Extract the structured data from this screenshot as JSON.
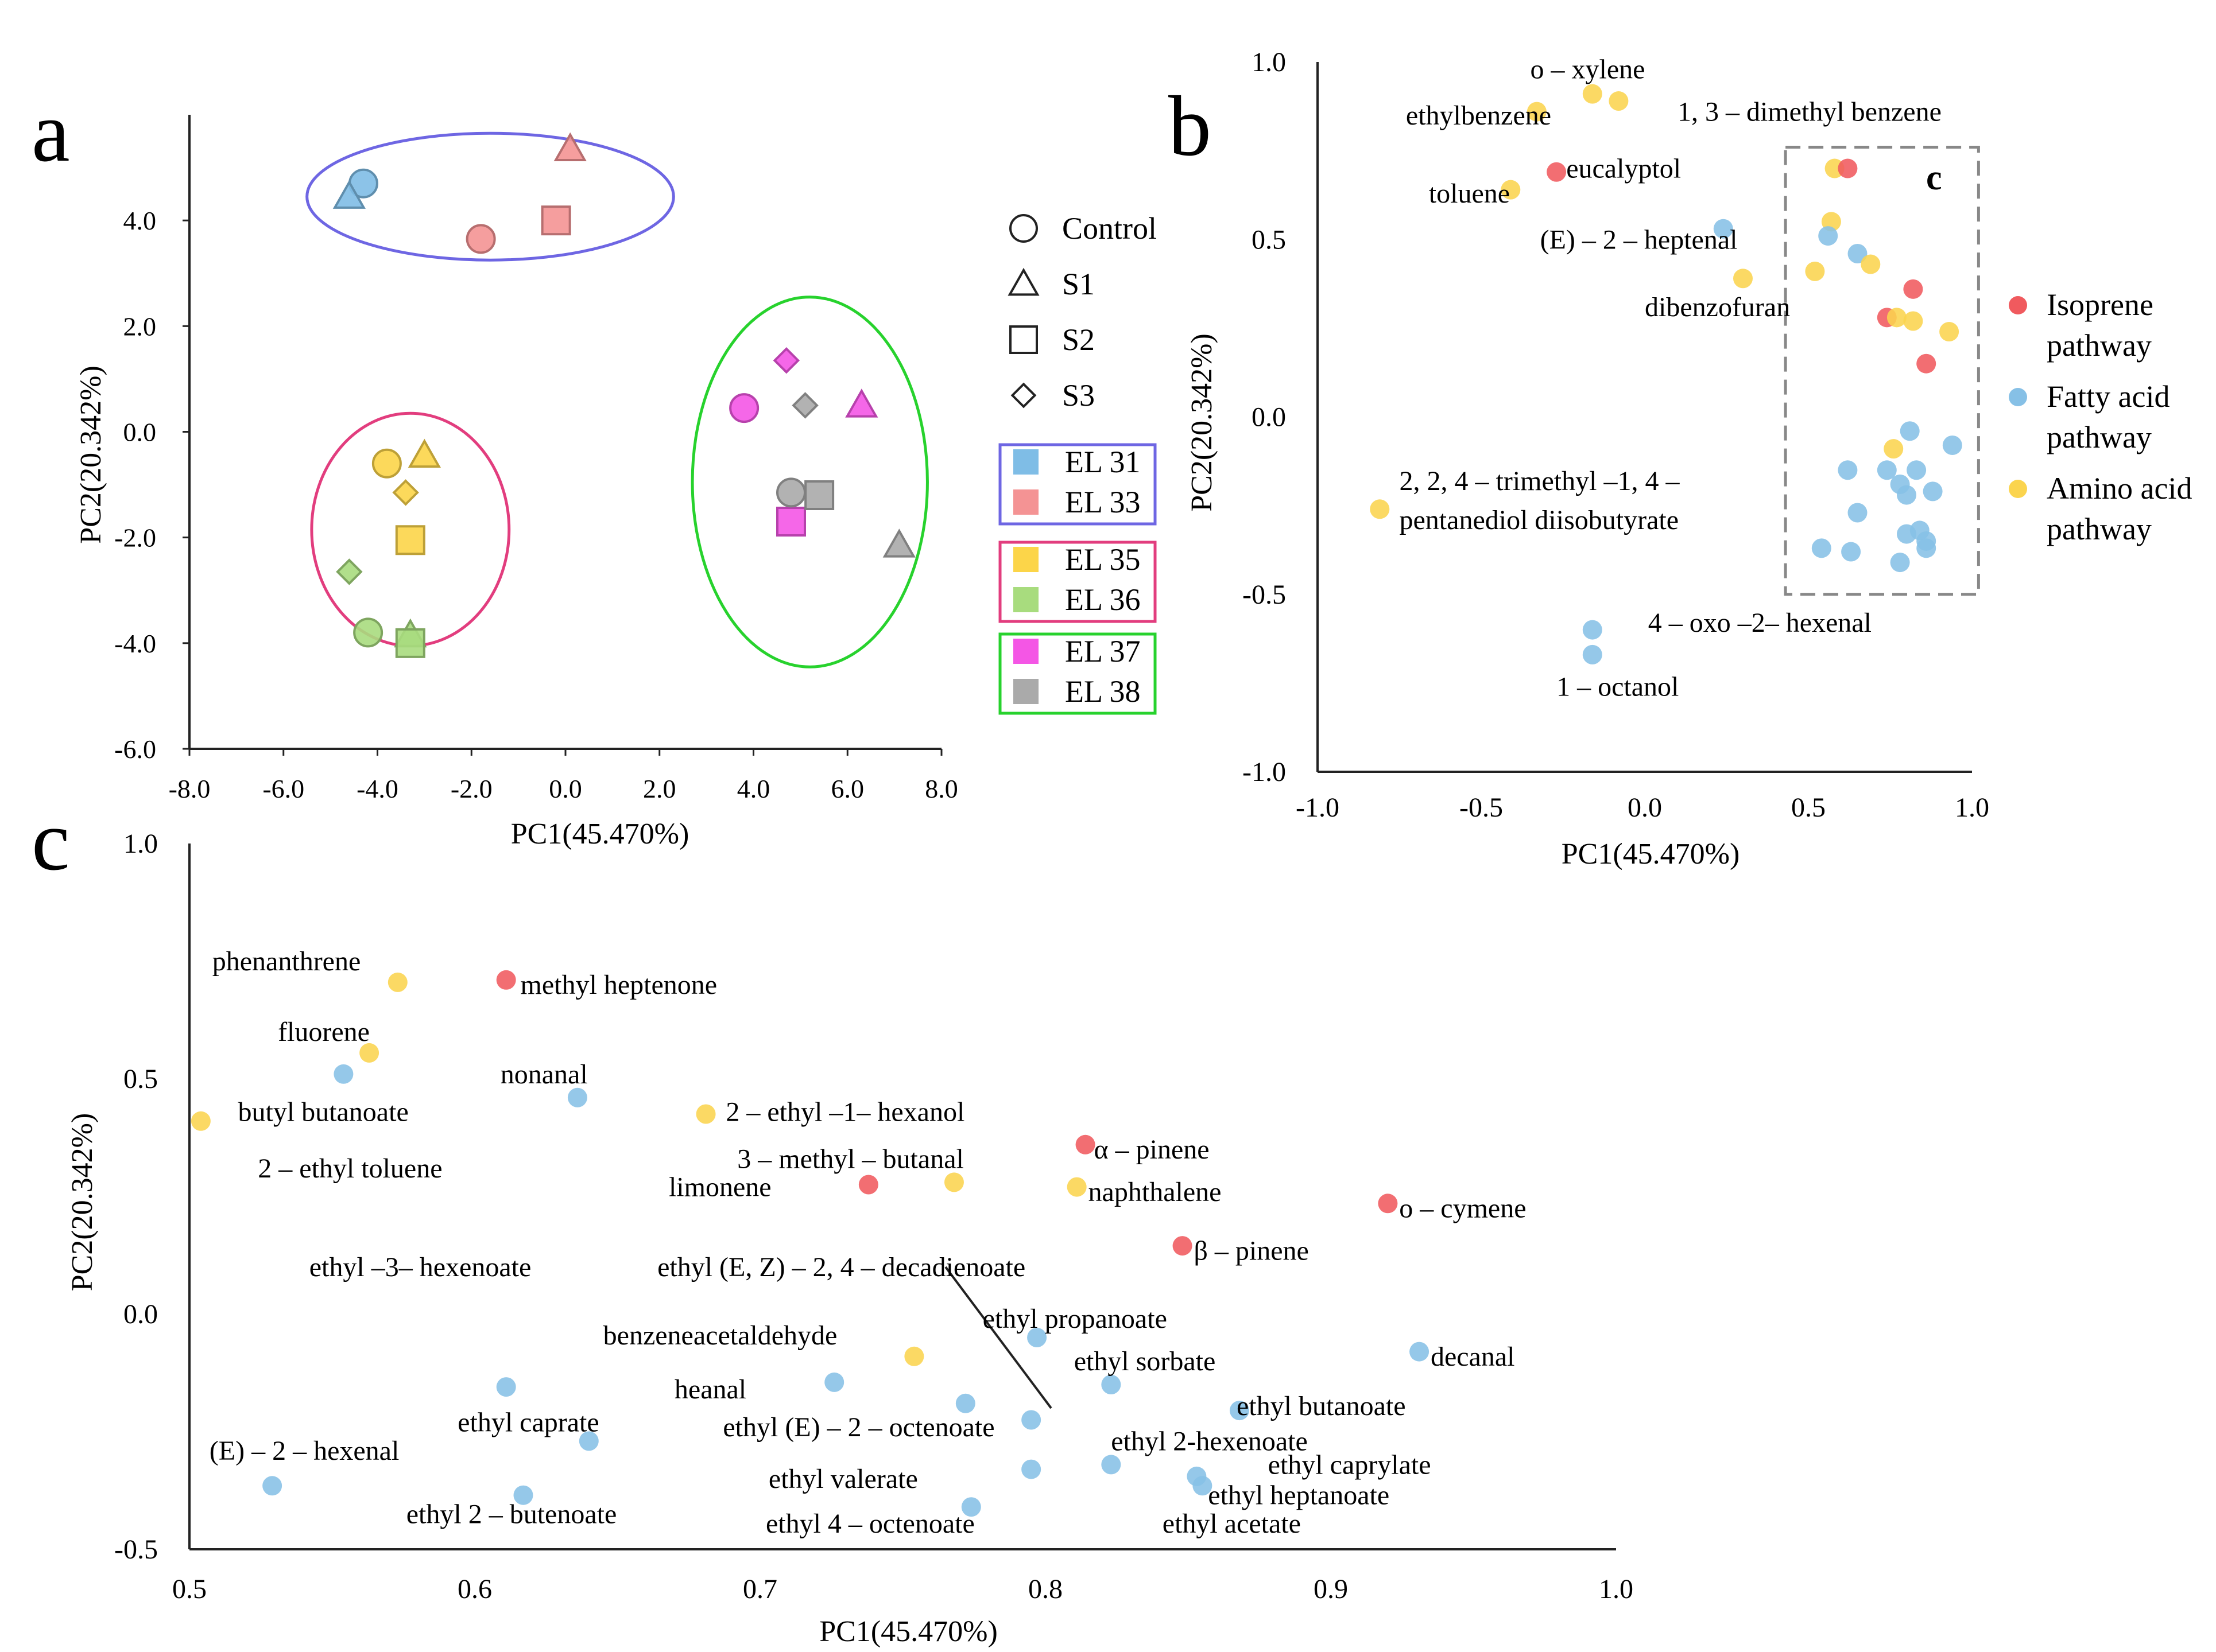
{
  "panel_labels": {
    "a": "a",
    "b": "b",
    "c": "c",
    "c_inset": "c"
  },
  "colors": {
    "EL31": "#7fbde6",
    "EL33": "#f49394",
    "EL35": "#fcd549",
    "EL36": "#a8dc7e",
    "EL37": "#f456e5",
    "EL38": "#aaaaaa",
    "isoprene": "#f05a5e",
    "fatty": "#86c0e6",
    "amino": "#fbd44e",
    "ellipse_blue": "#6e66e3",
    "ellipse_pink": "#e23d7e",
    "ellipse_green": "#27d22d"
  },
  "chart_data": [
    {
      "id": "a",
      "type": "scatter",
      "xlabel": "PC1(45.470%)",
      "ylabel": "PC2(20.342%)",
      "xlim": [
        -8,
        8
      ],
      "ylim": [
        -6,
        6
      ],
      "xticks": [
        "-8.0",
        "-6.0",
        "-4.0",
        "-2.0",
        "0.0",
        "2.0",
        "4.0",
        "6.0",
        "8.0"
      ],
      "yticks": [
        "-6.0",
        "-4.0",
        "-2.0",
        "0.0",
        "2.0",
        "4.0"
      ],
      "shape_legend": [
        {
          "shape": "circle",
          "label": "Control"
        },
        {
          "shape": "triangle",
          "label": "S1"
        },
        {
          "shape": "square",
          "label": "S2"
        },
        {
          "shape": "diamond",
          "label": "S3"
        }
      ],
      "group_legend": [
        {
          "box": "blue",
          "items": [
            {
              "group": "EL31",
              "label": "EL 31"
            },
            {
              "group": "EL33",
              "label": "EL 33"
            }
          ]
        },
        {
          "box": "pink",
          "items": [
            {
              "group": "EL35",
              "label": "EL 35"
            },
            {
              "group": "EL36",
              "label": "EL 36"
            }
          ]
        },
        {
          "box": "green",
          "items": [
            {
              "group": "EL37",
              "label": "EL 37"
            },
            {
              "group": "EL38",
              "label": "EL 38"
            }
          ]
        }
      ],
      "clusters": [
        {
          "color": "blue",
          "cx": -1.6,
          "cy": 4.45,
          "rx": 3.9,
          "ry": 1.2
        },
        {
          "color": "pink",
          "cx": -3.3,
          "cy": -1.85,
          "rx": 2.1,
          "ry": 2.2
        },
        {
          "color": "green",
          "cx": 5.2,
          "cy": -0.95,
          "rx": 2.5,
          "ry": 3.5
        }
      ],
      "points": [
        {
          "group": "EL31",
          "shape": "circle",
          "x": -4.3,
          "y": 4.7
        },
        {
          "group": "EL31",
          "shape": "triangle",
          "x": -4.6,
          "y": 4.45
        },
        {
          "group": "EL33",
          "shape": "triangle",
          "x": 0.1,
          "y": 5.35
        },
        {
          "group": "EL33",
          "shape": "square",
          "x": -0.2,
          "y": 4.0
        },
        {
          "group": "EL33",
          "shape": "circle",
          "x": -1.8,
          "y": 3.65
        },
        {
          "group": "EL35",
          "shape": "circle",
          "x": -3.8,
          "y": -0.6
        },
        {
          "group": "EL35",
          "shape": "triangle",
          "x": -3.0,
          "y": -0.45
        },
        {
          "group": "EL35",
          "shape": "diamond",
          "x": -3.4,
          "y": -1.15
        },
        {
          "group": "EL35",
          "shape": "square",
          "x": -3.3,
          "y": -2.05
        },
        {
          "group": "EL36",
          "shape": "diamond",
          "x": -4.6,
          "y": -2.65
        },
        {
          "group": "EL36",
          "shape": "circle",
          "x": -4.2,
          "y": -3.8
        },
        {
          "group": "EL36",
          "shape": "triangle",
          "x": -3.3,
          "y": -3.85
        },
        {
          "group": "EL36",
          "shape": "square",
          "x": -3.3,
          "y": -4.0
        },
        {
          "group": "EL37",
          "shape": "diamond",
          "x": 4.7,
          "y": 1.35
        },
        {
          "group": "EL37",
          "shape": "circle",
          "x": 3.8,
          "y": 0.45
        },
        {
          "group": "EL37",
          "shape": "triangle",
          "x": 6.3,
          "y": 0.5
        },
        {
          "group": "EL37",
          "shape": "square",
          "x": 4.8,
          "y": -1.7
        },
        {
          "group": "EL38",
          "shape": "diamond",
          "x": 5.1,
          "y": 0.5
        },
        {
          "group": "EL38",
          "shape": "circle",
          "x": 4.8,
          "y": -1.15
        },
        {
          "group": "EL38",
          "shape": "square",
          "x": 5.4,
          "y": -1.2
        },
        {
          "group": "EL38",
          "shape": "triangle",
          "x": 7.1,
          "y": -2.15
        }
      ]
    },
    {
      "id": "b",
      "type": "scatter",
      "xlabel": "PC1(45.470%)",
      "ylabel": "PC2(20.342%)",
      "xlim": [
        -1.0,
        1.0
      ],
      "ylim": [
        -1.0,
        1.0
      ],
      "xticks": [
        "-1.0",
        "-0.5",
        "0.0",
        "0.5",
        "1.0"
      ],
      "yticks": [
        "-1.0",
        "-0.5",
        "0.0",
        "0.5",
        "1.0"
      ],
      "legend": [
        {
          "pathway": "isoprene",
          "line1": "Isoprene",
          "line2": "pathway"
        },
        {
          "pathway": "fatty",
          "line1": "Fatty acid",
          "line2": "pathway"
        },
        {
          "pathway": "amino",
          "line1": "Amino acid",
          "line2": "pathway"
        }
      ],
      "inset_box": {
        "x": [
          0.43,
          1.02
        ],
        "y": [
          -0.5,
          0.76
        ]
      },
      "points": [
        {
          "p": "amino",
          "x": -0.16,
          "y": 0.91,
          "label": "o – xylene",
          "lx": -0.35,
          "ly": 0.98
        },
        {
          "p": "amino",
          "x": -0.08,
          "y": 0.89,
          "label": "1, 3 – dimethyl benzene",
          "lx": 0.1,
          "ly": 0.86
        },
        {
          "p": "amino",
          "x": -0.33,
          "y": 0.86,
          "label": "ethylbenzene",
          "lx": -0.73,
          "ly": 0.85
        },
        {
          "p": "isoprene",
          "x": -0.27,
          "y": 0.69,
          "label": "eucalyptol",
          "lx": -0.24,
          "ly": 0.7
        },
        {
          "p": "amino",
          "x": -0.41,
          "y": 0.64,
          "label": "toluene",
          "lx": -0.66,
          "ly": 0.63
        },
        {
          "p": "fatty",
          "x": 0.24,
          "y": 0.53,
          "label": "(E) – 2 – heptenal",
          "lx": -0.32,
          "ly": 0.5
        },
        {
          "p": "amino",
          "x": 0.3,
          "y": 0.39,
          "label": "dibenzofuran",
          "lx": 0.0,
          "ly": 0.31
        },
        {
          "p": "amino",
          "x": -0.81,
          "y": -0.26,
          "label": "2, 2, 4 – trimethyl –1, 4 –",
          "lx": -0.75,
          "ly": -0.18
        },
        {
          "p": "fatty",
          "x": -0.16,
          "y": -0.6,
          "label": "4 – oxo –2– hexenal",
          "lx": 0.01,
          "ly": -0.58
        },
        {
          "p": "fatty",
          "x": -0.16,
          "y": -0.67,
          "label": "1 – octanol",
          "lx": -0.27,
          "ly": -0.76
        },
        {
          "p": "amino",
          "x": 0.58,
          "y": 0.7
        },
        {
          "p": "isoprene",
          "x": 0.62,
          "y": 0.7
        },
        {
          "p": "amino",
          "x": 0.57,
          "y": 0.55
        },
        {
          "p": "fatty",
          "x": 0.56,
          "y": 0.51
        },
        {
          "p": "fatty",
          "x": 0.65,
          "y": 0.46
        },
        {
          "p": "amino",
          "x": 0.69,
          "y": 0.43
        },
        {
          "p": "amino",
          "x": 0.52,
          "y": 0.41
        },
        {
          "p": "isoprene",
          "x": 0.82,
          "y": 0.36
        },
        {
          "p": "isoprene",
          "x": 0.74,
          "y": 0.28
        },
        {
          "p": "amino",
          "x": 0.77,
          "y": 0.28
        },
        {
          "p": "amino",
          "x": 0.82,
          "y": 0.27
        },
        {
          "p": "amino",
          "x": 0.93,
          "y": 0.24
        },
        {
          "p": "isoprene",
          "x": 0.86,
          "y": 0.15
        },
        {
          "p": "fatty",
          "x": 0.81,
          "y": -0.04
        },
        {
          "p": "amino",
          "x": 0.76,
          "y": -0.09
        },
        {
          "p": "fatty",
          "x": 0.94,
          "y": -0.08
        },
        {
          "p": "fatty",
          "x": 0.62,
          "y": -0.15
        },
        {
          "p": "fatty",
          "x": 0.74,
          "y": -0.15
        },
        {
          "p": "fatty",
          "x": 0.83,
          "y": -0.15
        },
        {
          "p": "fatty",
          "x": 0.78,
          "y": -0.19
        },
        {
          "p": "fatty",
          "x": 0.88,
          "y": -0.21
        },
        {
          "p": "fatty",
          "x": 0.8,
          "y": -0.22
        },
        {
          "p": "fatty",
          "x": 0.65,
          "y": -0.27
        },
        {
          "p": "fatty",
          "x": 0.8,
          "y": -0.33
        },
        {
          "p": "fatty",
          "x": 0.84,
          "y": -0.32
        },
        {
          "p": "fatty",
          "x": 0.86,
          "y": -0.35
        },
        {
          "p": "fatty",
          "x": 0.86,
          "y": -0.37
        },
        {
          "p": "fatty",
          "x": 0.54,
          "y": -0.37
        },
        {
          "p": "fatty",
          "x": 0.63,
          "y": -0.38
        },
        {
          "p": "fatty",
          "x": 0.78,
          "y": -0.41
        }
      ],
      "extra_labels": [
        {
          "text": "pentanediol diisobutyrate",
          "x": -0.75,
          "y": -0.29
        }
      ]
    },
    {
      "id": "c",
      "type": "scatter",
      "xlabel": "PC1(45.470%)",
      "ylabel": "PC2(20.342%)",
      "xlim": [
        0.5,
        1.0
      ],
      "ylim": [
        -0.5,
        1.0
      ],
      "xticks": [
        "0.5",
        "0.6",
        "0.7",
        "0.8",
        "0.9",
        "1.0"
      ],
      "yticks": [
        "-0.5",
        "0.0",
        "0.5",
        "1.0"
      ],
      "points": [
        {
          "p": "amino",
          "x": 0.573,
          "y": 0.705,
          "label": "phenanthrene",
          "lx": 0.508,
          "ly": 0.75
        },
        {
          "p": "isoprene",
          "x": 0.611,
          "y": 0.71,
          "label": "methyl heptenone",
          "lx": 0.616,
          "ly": 0.7
        },
        {
          "p": "amino",
          "x": 0.563,
          "y": 0.555,
          "label": "fluorene",
          "lx": 0.531,
          "ly": 0.6
        },
        {
          "p": "fatty",
          "x": 0.554,
          "y": 0.51,
          "label": "nonanal",
          "lx": 0.609,
          "ly": 0.51
        },
        {
          "p": "fatty",
          "x": 0.636,
          "y": 0.46,
          "label": "butyl butanoate",
          "lx": 0.517,
          "ly": 0.43
        },
        {
          "p": "amino",
          "x": 0.504,
          "y": 0.41,
          "label": "2 – ethyl toluene",
          "lx": 0.524,
          "ly": 0.31
        },
        {
          "p": "amino",
          "x": 0.681,
          "y": 0.425,
          "label": "2 – ethyl –1– hexanol",
          "lx": 0.688,
          "ly": 0.43
        },
        {
          "p": "isoprene",
          "x": 0.814,
          "y": 0.36,
          "label": "α – pinene",
          "lx": 0.817,
          "ly": 0.35
        },
        {
          "p": "amino",
          "x": 0.768,
          "y": 0.28,
          "label": "3 – methyl – butanal",
          "lx": 0.692,
          "ly": 0.33
        },
        {
          "p": "isoprene",
          "x": 0.738,
          "y": 0.275,
          "label": "limonene",
          "lx": 0.668,
          "ly": 0.27
        },
        {
          "p": "amino",
          "x": 0.811,
          "y": 0.27,
          "label": "naphthalene",
          "lx": 0.815,
          "ly": 0.26
        },
        {
          "p": "isoprene",
          "x": 0.92,
          "y": 0.235,
          "label": "o – cymene",
          "lx": 0.924,
          "ly": 0.225
        },
        {
          "p": "isoprene",
          "x": 0.848,
          "y": 0.145,
          "label": "β – pinene",
          "lx": 0.852,
          "ly": 0.135
        },
        {
          "label": "ethyl –3– hexenoate",
          "lx": 0.542,
          "ly": 0.1
        },
        {
          "label": "ethyl (E, Z) – 2, 4 – decadienoate",
          "lx": 0.664,
          "ly": 0.1
        },
        {
          "p": "fatty",
          "x": 0.797,
          "y": -0.05,
          "label": "ethyl propanoate",
          "lx": 0.778,
          "ly": -0.01
        },
        {
          "p": "amino",
          "x": 0.754,
          "y": -0.09,
          "label": "benzeneacetaldehyde",
          "lx": 0.645,
          "ly": -0.045
        },
        {
          "p": "fatty",
          "x": 0.931,
          "y": -0.08,
          "label": "decanal",
          "lx": 0.935,
          "ly": -0.09
        },
        {
          "p": "fatty",
          "x": 0.823,
          "y": -0.15,
          "label": "ethyl sorbate",
          "lx": 0.81,
          "ly": -0.1
        },
        {
          "p": "fatty",
          "x": 0.726,
          "y": -0.145,
          "label": "heanal",
          "lx": 0.67,
          "ly": -0.16
        },
        {
          "p": "fatty",
          "x": 0.611,
          "y": -0.155,
          "label": "ethyl caprate",
          "lx": 0.594,
          "ly": -0.23
        },
        {
          "p": "fatty",
          "x": 0.772,
          "y": -0.19,
          "label": "ethyl (E) – 2 – octenoate",
          "lx": 0.687,
          "ly": -0.24
        },
        {
          "p": "fatty",
          "x": 0.868,
          "y": -0.205,
          "label": "ethyl butanoate",
          "lx": 0.867,
          "ly": -0.195
        },
        {
          "p": "fatty",
          "x": 0.795,
          "y": -0.225
        },
        {
          "p": "fatty",
          "x": 0.64,
          "y": -0.27,
          "label": "(E) – 2 – hexenal",
          "lx": 0.507,
          "ly": -0.29
        },
        {
          "p": "fatty",
          "x": 0.823,
          "y": -0.32,
          "label": "ethyl 2-hexenoate",
          "lx": 0.823,
          "ly": -0.27
        },
        {
          "p": "fatty",
          "x": 0.795,
          "y": -0.33,
          "label": "ethyl valerate",
          "lx": 0.703,
          "ly": -0.35
        },
        {
          "p": "fatty",
          "x": 0.853,
          "y": -0.345,
          "label": "ethyl caprylate",
          "lx": 0.878,
          "ly": -0.32
        },
        {
          "p": "fatty",
          "x": 0.855,
          "y": -0.365,
          "label": "ethyl heptanoate",
          "lx": 0.857,
          "ly": -0.385
        },
        {
          "p": "fatty",
          "x": 0.529,
          "y": -0.365
        },
        {
          "p": "fatty",
          "x": 0.617,
          "y": -0.385,
          "label": "ethyl 2 – butenoate",
          "lx": 0.576,
          "ly": -0.425
        },
        {
          "p": "fatty",
          "x": 0.774,
          "y": -0.41,
          "label": "ethyl 4 – octenoate",
          "lx": 0.702,
          "ly": -0.445
        },
        {
          "label": "ethyl acetate",
          "lx": 0.841,
          "ly": -0.445
        }
      ],
      "leader_line": {
        "x1": 0.765,
        "y1": 0.1,
        "x2": 0.802,
        "y2": -0.2
      }
    }
  ]
}
